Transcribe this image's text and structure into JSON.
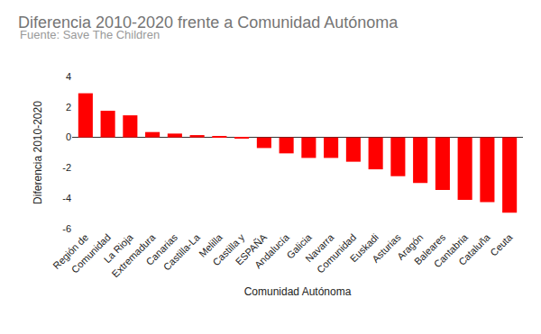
{
  "chart_data": {
    "type": "bar",
    "title": "Diferencia 2010-2020 frente a Comunidad Autónoma",
    "subtitle": "Fuente: Save The Children",
    "x_label": "Comunidad Autónoma",
    "y_label": "Diferencia 2010-2020",
    "categories": [
      "Región de",
      "Comunidad",
      "La Rioja",
      "Extremadura",
      "Canarias",
      "Castilla-La",
      "Melilla",
      "Castilla y",
      "ESPAÑA",
      "Andalucía",
      "Galicia",
      "Navarra",
      "Comunidad",
      "Euskadi",
      "Asturias",
      "Aragón",
      "Baleares",
      "Cantabria",
      "Cataluña",
      "Ceuta"
    ],
    "values": [
      2.9,
      1.75,
      1.45,
      0.35,
      0.25,
      0.15,
      0.05,
      -0.05,
      -0.7,
      -1.05,
      -1.35,
      -1.35,
      -1.6,
      -2.1,
      -2.55,
      -3.0,
      -3.45,
      -4.1,
      -4.25,
      -4.95
    ],
    "color": "#ff0000",
    "ylim": [
      -6,
      4
    ],
    "yticks": [
      -6,
      -4,
      -2,
      0,
      2,
      4
    ],
    "grid": false
  }
}
